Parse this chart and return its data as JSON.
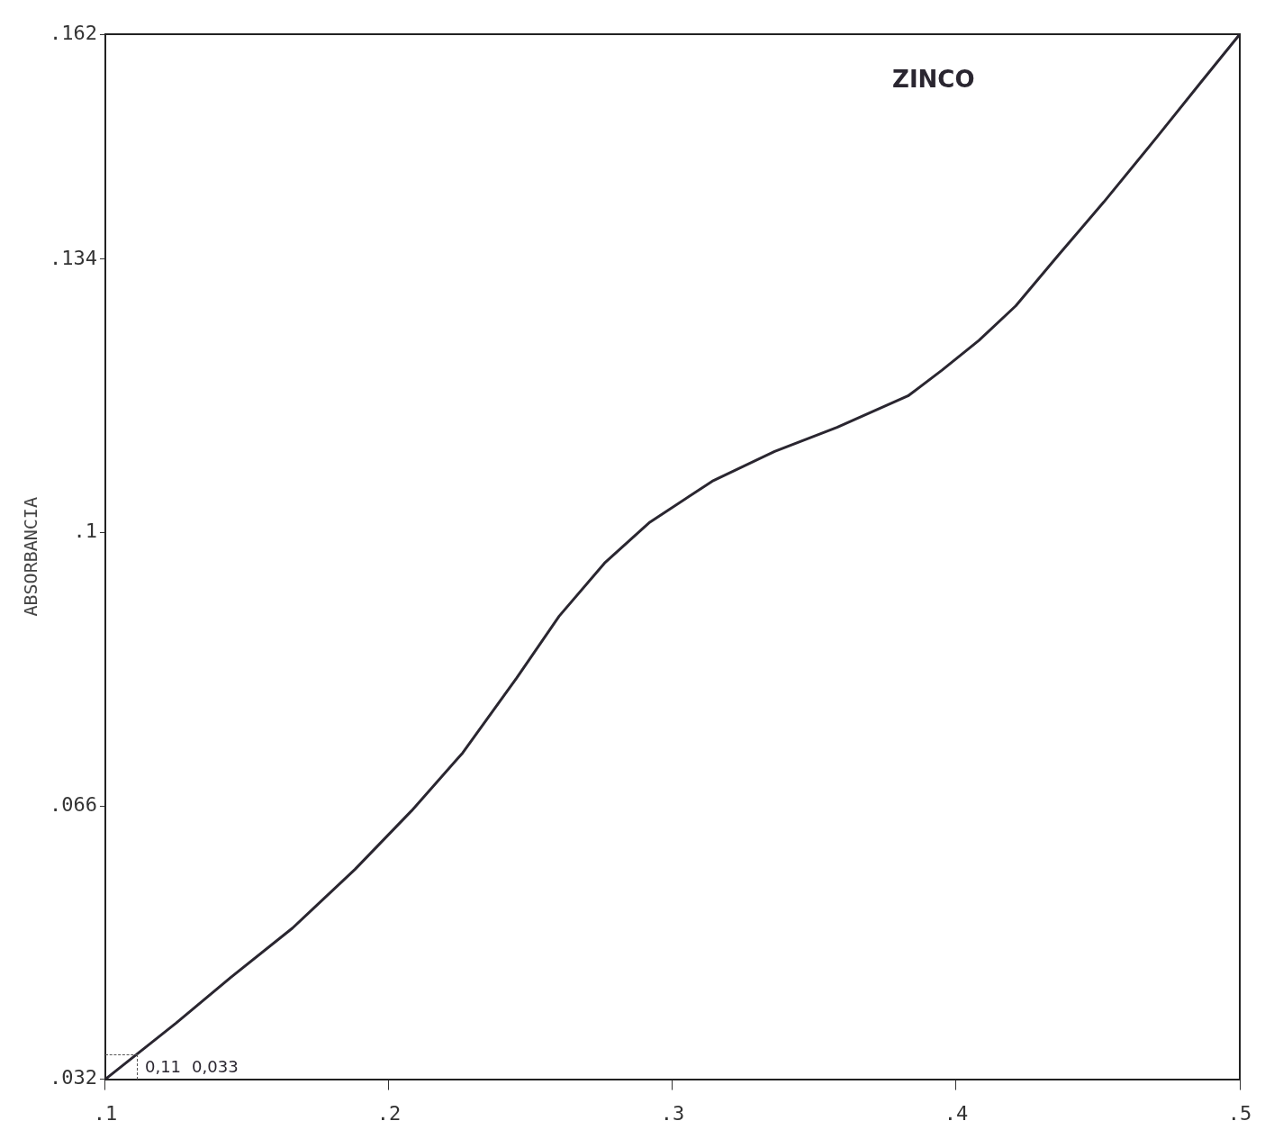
{
  "chart_data": {
    "type": "line",
    "title": "ZINCO",
    "ylabel": "ABSORBANCIA",
    "x": [
      0.1,
      0.125,
      0.144,
      0.166,
      0.188,
      0.208,
      0.226,
      0.245,
      0.26,
      0.276,
      0.292,
      0.314,
      0.336,
      0.358,
      0.383,
      0.395,
      0.408,
      0.421,
      0.436,
      0.452,
      0.471,
      0.486,
      0.5
    ],
    "series": [
      {
        "color": "#2a2630",
        "values": [
          0.032,
          0.039,
          0.0446,
          0.0508,
          0.0581,
          0.0654,
          0.0726,
          0.0819,
          0.0896,
          0.0962,
          0.1013,
          0.1064,
          0.1101,
          0.1131,
          0.117,
          0.1202,
          0.1239,
          0.1282,
          0.1345,
          0.1411,
          0.1493,
          0.1559,
          0.162
        ]
      }
    ],
    "xlim": [
      0.1,
      0.5
    ],
    "xticks": [
      {
        "value": 0.1,
        "label": ".1"
      },
      {
        "value": 0.2,
        "label": ".2"
      },
      {
        "value": 0.3,
        "label": ".3"
      },
      {
        "value": 0.4,
        "label": ".4"
      },
      {
        "value": 0.5,
        "label": ".5"
      }
    ],
    "ylim": [
      0.032,
      0.162
    ],
    "yticks": [
      {
        "value": 0.032,
        "label": ".032"
      },
      {
        "value": 0.066,
        "label": ".066"
      },
      {
        "value": 0.1,
        "label": ".1"
      },
      {
        "value": 0.134,
        "label": ".134"
      },
      {
        "value": 0.162,
        "label": ".162"
      }
    ],
    "annotations": [
      "0,033",
      "0,11"
    ],
    "grid": false,
    "legend": false,
    "marker": "none",
    "line_style": "solid"
  }
}
